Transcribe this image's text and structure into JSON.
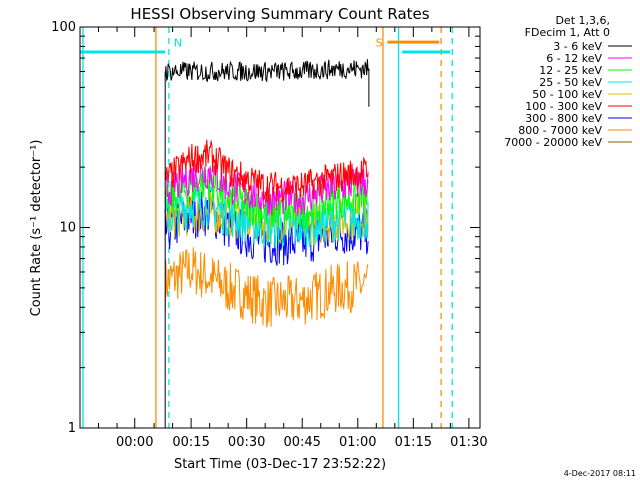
{
  "chart_data": {
    "type": "line",
    "title": "HESSI Observing Summary Count Rates",
    "xlabel": "Start Time (03-Dec-17 23:52:22)",
    "ylabel": "Count Rate (s⁻¹ detector⁻¹)",
    "yscale": "log",
    "ylim": [
      1,
      100
    ],
    "xlim_minutes_after_00_00": [
      -15,
      93
    ],
    "x_ticks": [
      {
        "t": -0.22,
        "label": "00:00"
      },
      {
        "t": 15,
        "label": "00:15"
      },
      {
        "t": 30,
        "label": "00:30"
      },
      {
        "t": 45,
        "label": "00:45"
      },
      {
        "t": 60,
        "label": "01:00"
      },
      {
        "t": 75,
        "label": "01:15"
      },
      {
        "t": 90,
        "label": "01:30"
      }
    ],
    "y_ticks": [
      {
        "v": 1,
        "label": "1"
      },
      {
        "v": 10,
        "label": "10"
      },
      {
        "v": 100,
        "label": "100"
      }
    ],
    "grid": false,
    "legend_position": "right",
    "legend_header": [
      "Det 1,3,6,",
      "FDecim 1, Att 0"
    ],
    "series": [
      {
        "name": "3 - 6 keV",
        "color": "#000000",
        "x": [
          8,
          15,
          25,
          35,
          45,
          55,
          63
        ],
        "y": [
          60,
          60,
          60,
          60,
          60,
          62,
          62
        ],
        "noise": 0.05
      },
      {
        "name": "6 - 12 keV",
        "color": "#ff00ff",
        "x": [
          8,
          15,
          20,
          25,
          35,
          45,
          55,
          63
        ],
        "y": [
          15,
          18,
          19,
          16,
          14,
          14,
          16,
          17
        ],
        "noise": 0.09
      },
      {
        "name": "12 - 25 keV",
        "color": "#00ff00",
        "x": [
          8,
          15,
          20,
          25,
          35,
          45,
          55,
          63
        ],
        "y": [
          13,
          16,
          17,
          14,
          12,
          12,
          14,
          14
        ],
        "noise": 0.1
      },
      {
        "name": "25 - 50 keV",
        "color": "#00e5e5",
        "x": [
          8,
          15,
          20,
          25,
          35,
          45,
          55,
          63
        ],
        "y": [
          11,
          13,
          13,
          11.5,
          10,
          10,
          11,
          11
        ],
        "noise": 0.11
      },
      {
        "name": "50 - 100 keV",
        "color": "#e0c000",
        "x": [
          8,
          20,
          35,
          50,
          63
        ],
        "y": [
          11,
          12,
          10.5,
          10.5,
          11.5
        ],
        "noise": 0.11
      },
      {
        "name": "100 - 300 keV",
        "color": "#ff0000",
        "x": [
          8,
          15,
          20,
          25,
          35,
          45,
          55,
          63
        ],
        "y": [
          17,
          22,
          23,
          19,
          16,
          16,
          18,
          19
        ],
        "noise": 0.08
      },
      {
        "name": "300 - 800 keV",
        "color": "#0000ff",
        "x": [
          8,
          15,
          20,
          25,
          35,
          45,
          55,
          63
        ],
        "y": [
          9.5,
          11.5,
          12,
          10,
          8.5,
          8.5,
          9.5,
          9.5
        ],
        "noise": 0.12
      },
      {
        "name": "800 - 7000 keV",
        "color": "#ff8c00",
        "x": [
          8,
          15,
          25,
          35,
          45,
          55,
          63
        ],
        "y": [
          5.3,
          6.2,
          5,
          4.2,
          4.3,
          5,
          5.2
        ],
        "noise": 0.13
      },
      {
        "name": "7000 - 20000 keV",
        "color": "#8b5a00",
        "x": [],
        "y": [],
        "noise": 0
      }
    ],
    "annotations": {
      "markers": [
        {
          "label": "N",
          "t": 9,
          "color": "#00e5e5"
        },
        {
          "label": "S",
          "t": 67,
          "color": "#ff8c00"
        }
      ],
      "attenuator_bars": [
        {
          "color": "#00e5e5",
          "t_start": -15,
          "t_end": 8,
          "level": 75
        },
        {
          "color": "#ff8c00",
          "t_start": 68,
          "t_end": 82,
          "level": 84
        },
        {
          "color": "#00e5e5",
          "t_start": 72,
          "t_end": 85,
          "level": 75
        }
      ],
      "vertical_lines": [
        {
          "t": -14.2,
          "color": "#00e5e5",
          "style": "solid"
        },
        {
          "t": 5.5,
          "color": "#ff8c00",
          "style": "solid"
        },
        {
          "t": 9,
          "color": "#00e5e5",
          "style": "dashed"
        },
        {
          "t": 66.8,
          "color": "#ff8c00",
          "style": "solid"
        },
        {
          "t": 71,
          "color": "#00e5e5",
          "style": "solid"
        },
        {
          "t": 82.5,
          "color": "#ff8c00",
          "style": "dashed"
        },
        {
          "t": 85.5,
          "color": "#00e5e5",
          "style": "dashed"
        }
      ]
    },
    "timestamp": "4-Dec-2017 08:11"
  }
}
